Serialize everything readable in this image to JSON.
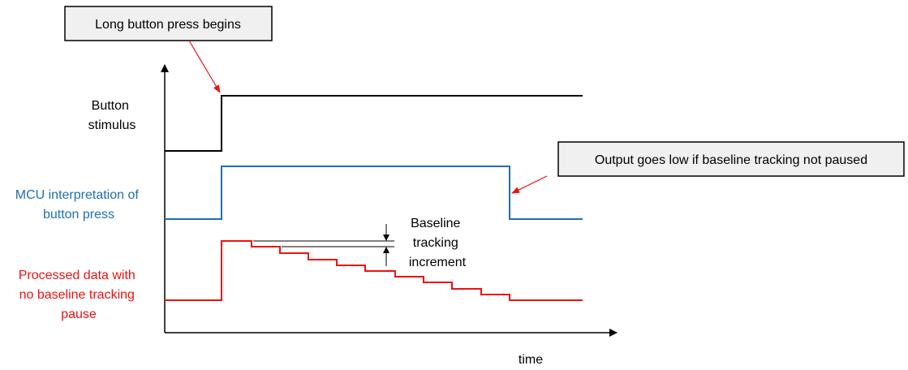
{
  "callouts": {
    "press_begins": "Long button press begins",
    "output_low": "Output goes low if baseline tracking not paused"
  },
  "labels": {
    "button_stimulus": [
      "Button",
      "stimulus"
    ],
    "mcu_interpretation": [
      "MCU interpretation of",
      "button press"
    ],
    "processed_data": [
      "Processed data with",
      "no baseline tracking",
      "pause"
    ],
    "baseline_increment": [
      "Baseline",
      "tracking",
      "increment"
    ],
    "time_axis": "time"
  },
  "colors": {
    "stimulus": "#000000",
    "mcu": "#1f6fb0",
    "processed": "#ee1111",
    "callout_arrow": "#ee1111",
    "callout_fill": "#f0f0f0"
  }
}
